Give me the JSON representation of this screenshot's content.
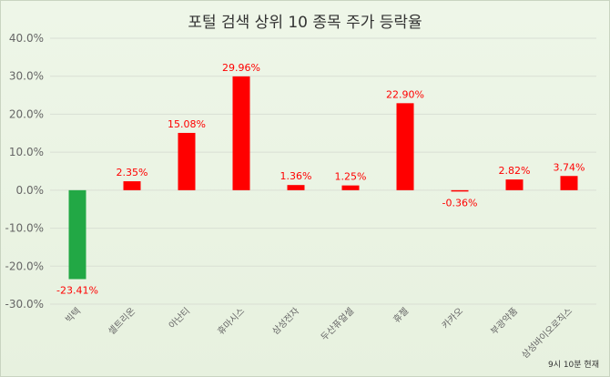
{
  "chart_data": {
    "type": "bar",
    "title": "포털 검색 상위 10 종목 주가 등락율",
    "categories": [
      "빅텍",
      "셀트리온",
      "아난티",
      "휴마시스",
      "삼성전자",
      "두산퓨얼셀",
      "휴젤",
      "카카오",
      "부광약품",
      "삼성바이오로직스"
    ],
    "values": [
      -23.41,
      2.35,
      15.08,
      29.96,
      1.36,
      1.25,
      22.9,
      -0.36,
      2.82,
      3.74
    ],
    "value_labels": [
      "-23.41%",
      "2.35%",
      "15.08%",
      "29.96%",
      "1.36%",
      "1.25%",
      "22.90%",
      "-0.36%",
      "2.82%",
      "3.74%"
    ],
    "ylim": [
      -30,
      40
    ],
    "yticks": [
      40,
      30,
      20,
      10,
      0,
      -10,
      -20,
      -30
    ],
    "ytick_labels": [
      "40.0%",
      "30.0%",
      "20.0%",
      "10.0%",
      "0.0%",
      "-10.0%",
      "-20.0%",
      "-30.0%"
    ],
    "grid": true,
    "xlabel": "",
    "ylabel": "",
    "colors": {
      "positive": "#ff0000",
      "negative_first": "#22a845",
      "negative_label": "#ff0000",
      "grid": "#d9dfd4"
    }
  },
  "footnote": "9시 10분 현재"
}
